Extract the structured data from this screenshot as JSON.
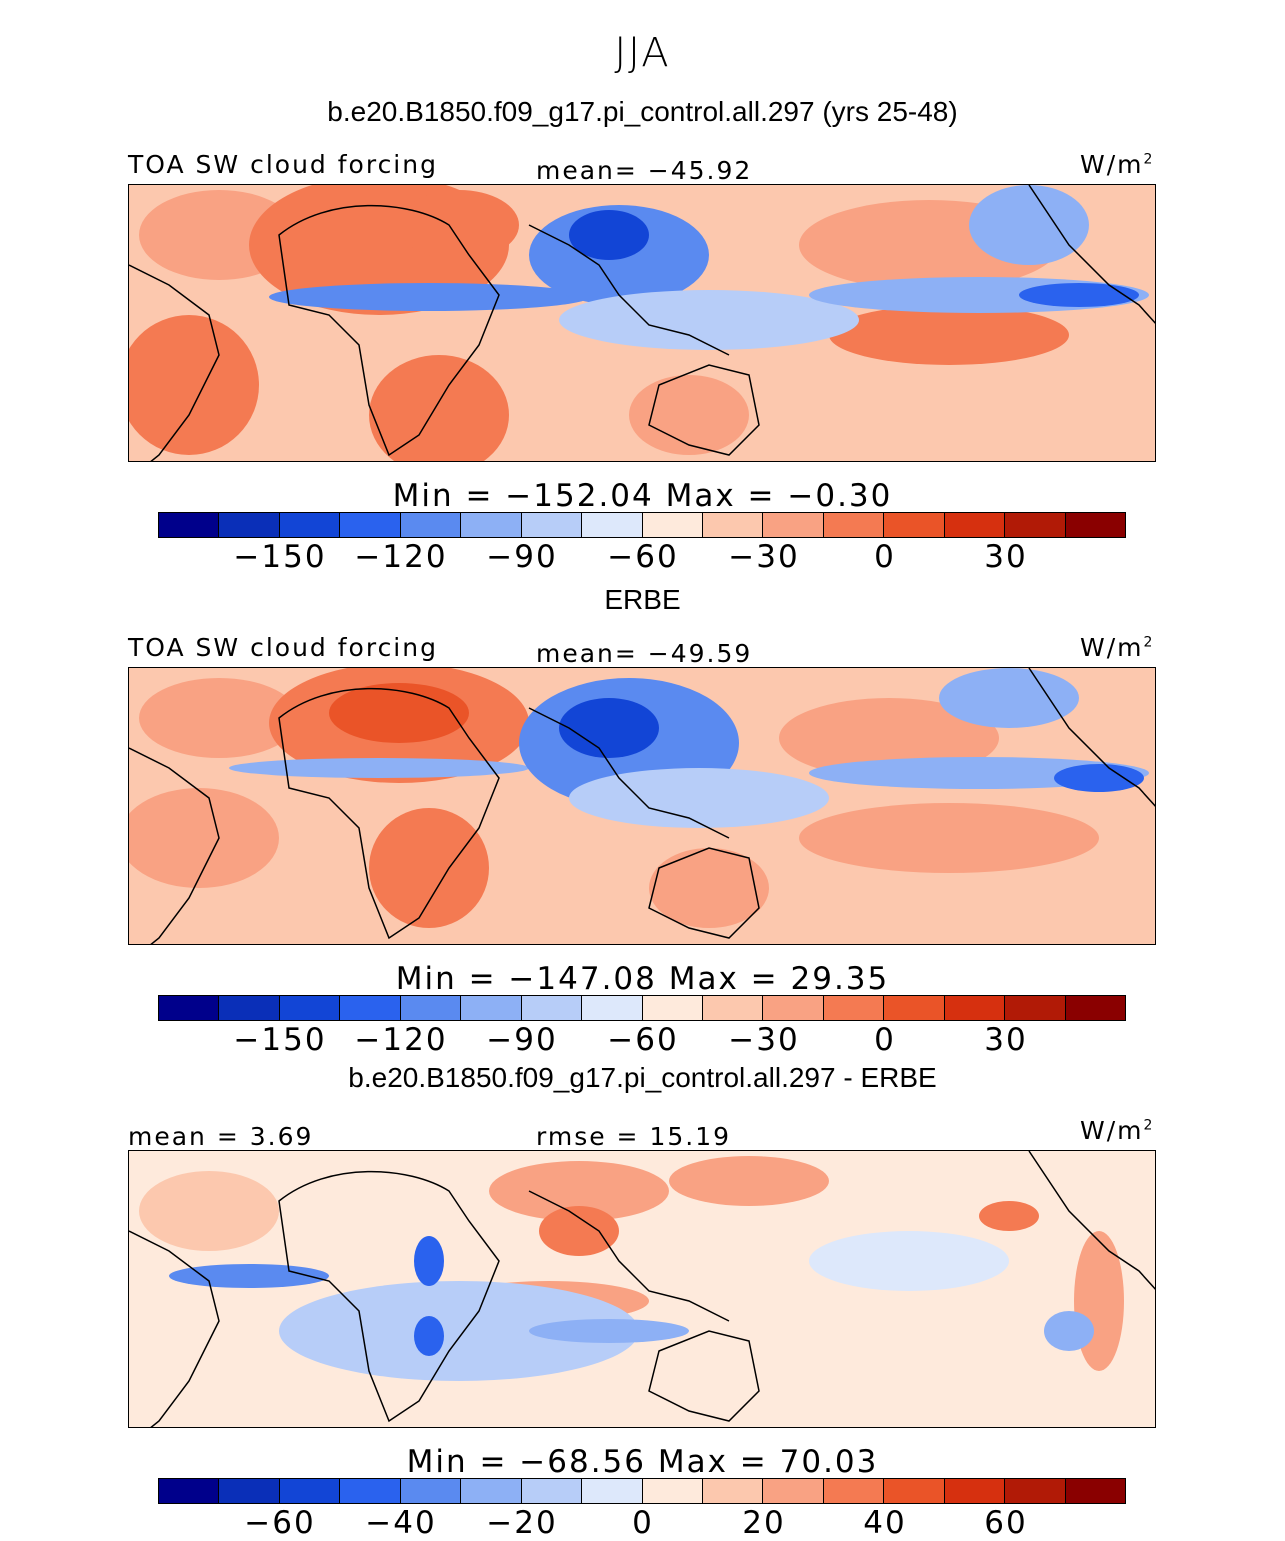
{
  "title": "JJA",
  "units_base": "W/m",
  "units_exp": "2",
  "panels": [
    {
      "heading": "b.e20.B1850.f09_g17.pi_control.all.297 (yrs 25-48)",
      "left_label": "TOA SW cloud forcing",
      "mid_label": "mean= −45.92",
      "minmax": "Min  =  −152.04  Max  =   −0.30",
      "colorbar_ticks": [
        "−150",
        "−120",
        "−90",
        "−60",
        "−30",
        "0",
        "30"
      ]
    },
    {
      "heading": "ERBE",
      "left_label": "TOA SW cloud forcing",
      "mid_label": "mean= −49.59",
      "minmax": "Min  =  −147.08  Max  =   29.35",
      "colorbar_ticks": [
        "−150",
        "−120",
        "−90",
        "−60",
        "−30",
        "0",
        "30"
      ]
    },
    {
      "heading": "b.e20.B1850.f09_g17.pi_control.all.297 - ERBE",
      "left_label": "mean =    3.69",
      "mid_label": "rmse  =   15.19",
      "minmax": "Min  =  −68.56  Max  =   70.03",
      "colorbar_ticks": [
        "−60",
        "−40",
        "−20",
        "0",
        "20",
        "40",
        "60"
      ]
    }
  ],
  "colors": {
    "palette": [
      "#00008b",
      "#0a2fb8",
      "#1245d6",
      "#2a62ee",
      "#5a8af0",
      "#8db0f5",
      "#b7cdf8",
      "#dde8fb",
      "#feeadc",
      "#fcc8ae",
      "#f9a283",
      "#f47a52",
      "#ea5428",
      "#d6300f",
      "#b11a06",
      "#8a0000"
    ],
    "map_background": "#fcc8ae",
    "diff_background": "#feeadc"
  },
  "chart_data": [
    {
      "type": "heatmap",
      "title": "TOA SW cloud forcing",
      "subtitle": "b.e20.B1850.f09_g17.pi_control.all.297 (yrs 25-48)",
      "season": "JJA",
      "units": "W/m2",
      "mean": -45.92,
      "min": -152.04,
      "max": -0.3,
      "contour_levels": [
        -165,
        -150,
        -135,
        -120,
        -105,
        -90,
        -75,
        -60,
        -45,
        -30,
        -15,
        0,
        15,
        30,
        45
      ],
      "colorbar_ticks": [
        -150,
        -120,
        -90,
        -60,
        -30,
        0,
        30
      ]
    },
    {
      "type": "heatmap",
      "title": "TOA SW cloud forcing",
      "subtitle": "ERBE",
      "season": "JJA",
      "units": "W/m2",
      "mean": -49.59,
      "min": -147.08,
      "max": 29.35,
      "contour_levels": [
        -165,
        -150,
        -135,
        -120,
        -105,
        -90,
        -75,
        -60,
        -45,
        -30,
        -15,
        0,
        15,
        30,
        45
      ],
      "colorbar_ticks": [
        -150,
        -120,
        -90,
        -60,
        -30,
        0,
        30
      ]
    },
    {
      "type": "heatmap",
      "title": "b.e20.B1850.f09_g17.pi_control.all.297 - ERBE",
      "season": "JJA",
      "units": "W/m2",
      "mean": 3.69,
      "rmse": 15.19,
      "min": -68.56,
      "max": 70.03,
      "contour_levels": [
        -70,
        -60,
        -50,
        -40,
        -30,
        -20,
        -10,
        0,
        10,
        20,
        30,
        40,
        50,
        60,
        70
      ],
      "colorbar_ticks": [
        -60,
        -40,
        -20,
        0,
        20,
        40,
        60
      ]
    }
  ]
}
